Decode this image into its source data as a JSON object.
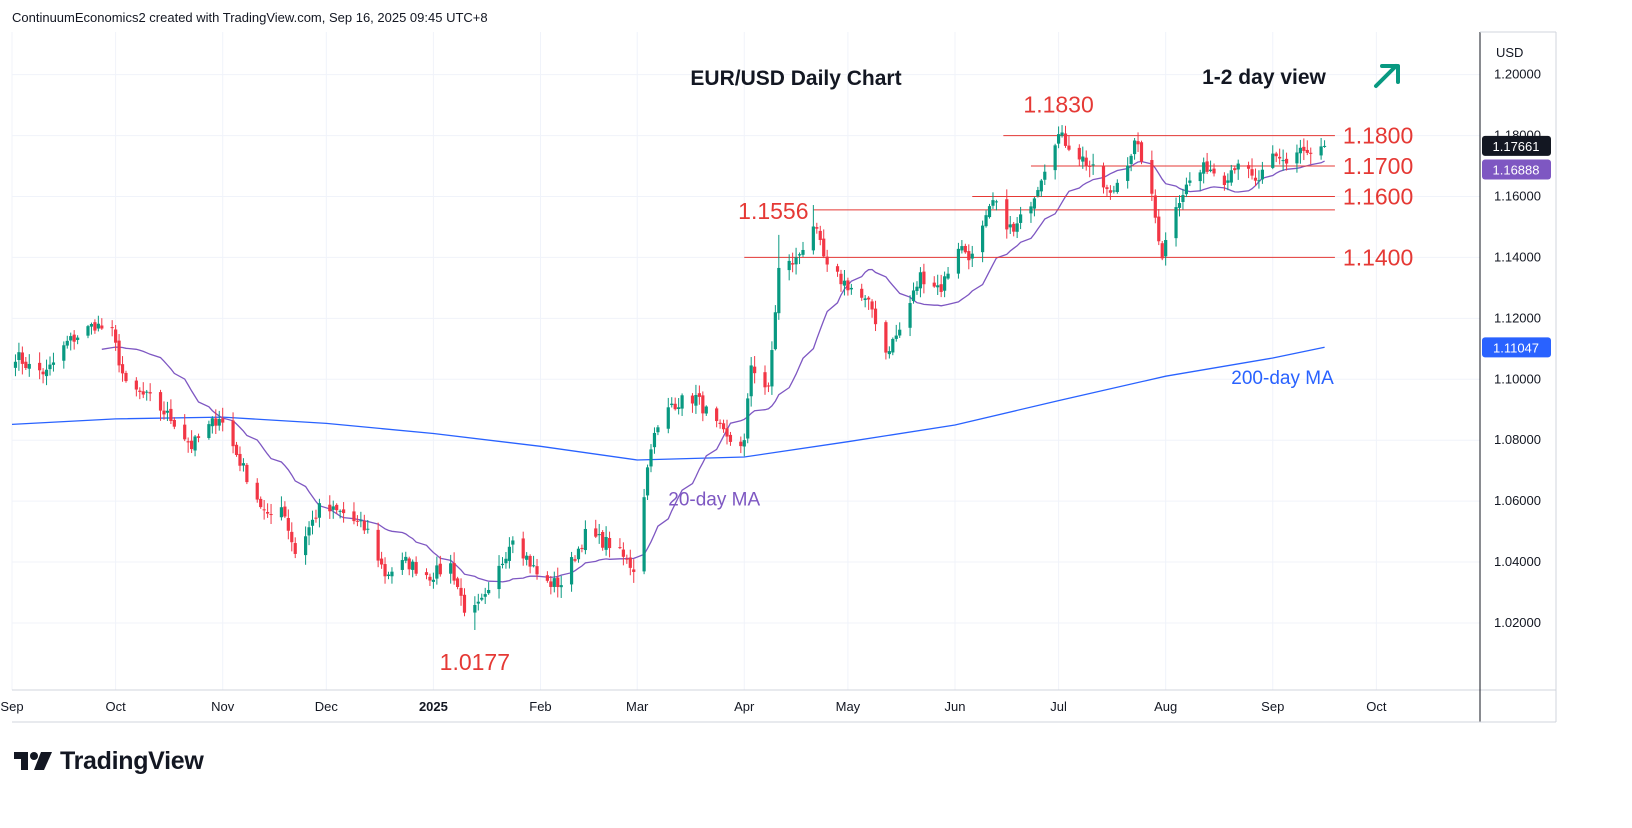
{
  "header": {
    "attribution": "ContinuumEconomics2 created with TradingView.com, Sep 16, 2025 09:45 UTC+8"
  },
  "footer": {
    "brand": "TradingView"
  },
  "colors": {
    "up": "#089981",
    "down": "#f23645",
    "ma20": "#7e57c2",
    "ma200": "#2962ff",
    "level_line": "#e53935",
    "level_text": "#e53935",
    "price_tag_bg": "#131722",
    "ma20_tag_bg": "#7e57c2",
    "ma200_tag_bg": "#2962ff",
    "arrow": "#089981"
  },
  "chart_data": {
    "type": "candlestick",
    "title": "EUR/USD Daily Chart",
    "subtitle": "1-2 day view",
    "outlook_icon": "arrow-up-right-icon",
    "currency": "USD",
    "ylim": [
      0.998,
      1.214
    ],
    "y_ticks": [
      1.02,
      1.04,
      1.06,
      1.08,
      1.1,
      1.12,
      1.14,
      1.16,
      1.18,
      1.2
    ],
    "y_tick_labels": [
      "1.02000",
      "1.04000",
      "1.06000",
      "1.08000",
      "1.10000",
      "1.12000",
      "1.14000",
      "1.16000",
      "1.18000",
      "1.20000"
    ],
    "x_labels": [
      "Sep",
      "Oct",
      "Nov",
      "Dec",
      "2025",
      "Feb",
      "Mar",
      "Apr",
      "May",
      "Jun",
      "Jul",
      "Aug",
      "Sep",
      "Oct"
    ],
    "x_label_dates": [
      "2024-09-01",
      "2024-10-01",
      "2024-11-01",
      "2024-12-01",
      "2025-01-01",
      "2025-02-01",
      "2025-03-01",
      "2025-04-01",
      "2025-05-01",
      "2025-06-01",
      "2025-07-01",
      "2025-08-01",
      "2025-09-01",
      "2025-10-01"
    ],
    "x_range": [
      "2024-09-01",
      "2025-10-31"
    ],
    "last_close_label": "1.17661",
    "ma20_last_label": "1.16888",
    "ma200_last_label": "1.11047",
    "levels": [
      {
        "value": 1.18,
        "label": "1.1800",
        "from": "2025-06-15",
        "to": "2025-09-19"
      },
      {
        "value": 1.17,
        "label": "1.1700",
        "from": "2025-06-23",
        "to": "2025-09-19"
      },
      {
        "value": 1.16,
        "label": "1.1600",
        "from": "2025-06-06",
        "to": "2025-09-19"
      },
      {
        "value": 1.1556,
        "label": "1.1556",
        "from": "2025-04-21",
        "to": "2025-09-19"
      },
      {
        "value": 1.14,
        "label": "1.1400",
        "from": "2025-04-01",
        "to": "2025-09-19"
      }
    ],
    "annotations": [
      {
        "text": "1.1830",
        "date": "2025-07-01",
        "value": 1.183,
        "kind": "level"
      },
      {
        "text": "1.1556",
        "date": "2025-04-21",
        "value": 1.1556,
        "kind": "level"
      },
      {
        "text": "1.0177",
        "date": "2025-01-13",
        "value": 1.0177,
        "kind": "level"
      },
      {
        "text": "200-day MA",
        "date": "2025-08-20",
        "value": 1.0985,
        "kind": "ma200"
      },
      {
        "text": "20-day MA",
        "date": "2025-03-10",
        "value": 1.0585,
        "kind": "ma20"
      }
    ],
    "ma200_anchors": [
      [
        "2024-09-01",
        1.0852
      ],
      [
        "2024-10-01",
        1.087
      ],
      [
        "2024-11-01",
        1.0876
      ],
      [
        "2024-12-01",
        1.0855
      ],
      [
        "2025-01-01",
        1.0822
      ],
      [
        "2025-02-01",
        1.078
      ],
      [
        "2025-03-01",
        1.0735
      ],
      [
        "2025-04-01",
        1.0745
      ],
      [
        "2025-05-01",
        1.0795
      ],
      [
        "2025-06-01",
        1.085
      ],
      [
        "2025-07-01",
        1.093
      ],
      [
        "2025-08-01",
        1.101
      ],
      [
        "2025-09-01",
        1.107
      ],
      [
        "2025-09-16",
        1.1105
      ]
    ],
    "price_anchors": [
      [
        "2024-09-02",
        1.108
      ],
      [
        "2024-09-06",
        1.104
      ],
      [
        "2024-09-11",
        1.102
      ],
      [
        "2024-09-17",
        1.112
      ],
      [
        "2024-09-25",
        1.118
      ],
      [
        "2024-09-30",
        1.115
      ],
      [
        "2024-10-04",
        1.0975
      ],
      [
        "2024-10-11",
        1.0935
      ],
      [
        "2024-10-18",
        1.086
      ],
      [
        "2024-10-23",
        1.078
      ],
      [
        "2024-10-31",
        1.088
      ],
      [
        "2024-11-06",
        1.073
      ],
      [
        "2024-11-14",
        1.054
      ],
      [
        "2024-11-18",
        1.0595
      ],
      [
        "2024-11-22",
        1.043
      ],
      [
        "2024-11-29",
        1.0575
      ],
      [
        "2024-12-06",
        1.056
      ],
      [
        "2024-12-13",
        1.05
      ],
      [
        "2024-12-18",
        1.036
      ],
      [
        "2024-12-24",
        1.04
      ],
      [
        "2024-12-31",
        1.0355
      ],
      [
        "2025-01-06",
        1.039
      ],
      [
        "2025-01-10",
        1.025
      ],
      [
        "2025-01-13",
        1.024
      ],
      [
        "2025-01-17",
        1.029
      ],
      [
        "2025-01-24",
        1.049
      ],
      [
        "2025-01-31",
        1.036
      ],
      [
        "2025-02-03",
        1.033
      ],
      [
        "2025-02-07",
        1.033
      ],
      [
        "2025-02-14",
        1.049
      ],
      [
        "2025-02-21",
        1.046
      ],
      [
        "2025-02-28",
        1.038
      ],
      [
        "2025-03-05",
        1.079
      ],
      [
        "2025-03-11",
        1.092
      ],
      [
        "2025-03-18",
        1.094
      ],
      [
        "2025-03-27",
        1.08
      ],
      [
        "2025-04-01",
        1.079
      ],
      [
        "2025-04-03",
        1.105
      ],
      [
        "2025-04-08",
        1.096
      ],
      [
        "2025-04-11",
        1.136
      ],
      [
        "2025-04-16",
        1.139
      ],
      [
        "2025-04-21",
        1.151
      ],
      [
        "2025-04-25",
        1.136
      ],
      [
        "2025-05-02",
        1.13
      ],
      [
        "2025-05-08",
        1.123
      ],
      [
        "2025-05-12",
        1.109
      ],
      [
        "2025-05-16",
        1.116
      ],
      [
        "2025-05-22",
        1.134
      ],
      [
        "2025-05-28",
        1.13
      ],
      [
        "2025-06-02",
        1.144
      ],
      [
        "2025-06-06",
        1.14
      ],
      [
        "2025-06-12",
        1.158
      ],
      [
        "2025-06-18",
        1.148
      ],
      [
        "2025-06-24",
        1.161
      ],
      [
        "2025-06-30",
        1.179
      ],
      [
        "2025-07-01",
        1.18
      ],
      [
        "2025-07-04",
        1.177
      ],
      [
        "2025-07-10",
        1.17
      ],
      [
        "2025-07-16",
        1.16
      ],
      [
        "2025-07-23",
        1.177
      ],
      [
        "2025-07-25",
        1.173
      ],
      [
        "2025-07-28",
        1.159
      ],
      [
        "2025-07-31",
        1.141
      ],
      [
        "2025-08-04",
        1.158
      ],
      [
        "2025-08-08",
        1.165
      ],
      [
        "2025-08-13",
        1.17
      ],
      [
        "2025-08-18",
        1.166
      ],
      [
        "2025-08-22",
        1.172
      ],
      [
        "2025-08-27",
        1.164
      ],
      [
        "2025-09-01",
        1.172
      ],
      [
        "2025-09-05",
        1.1715
      ],
      [
        "2025-09-09",
        1.176
      ],
      [
        "2025-09-12",
        1.173
      ],
      [
        "2025-09-16",
        1.1766
      ]
    ]
  }
}
